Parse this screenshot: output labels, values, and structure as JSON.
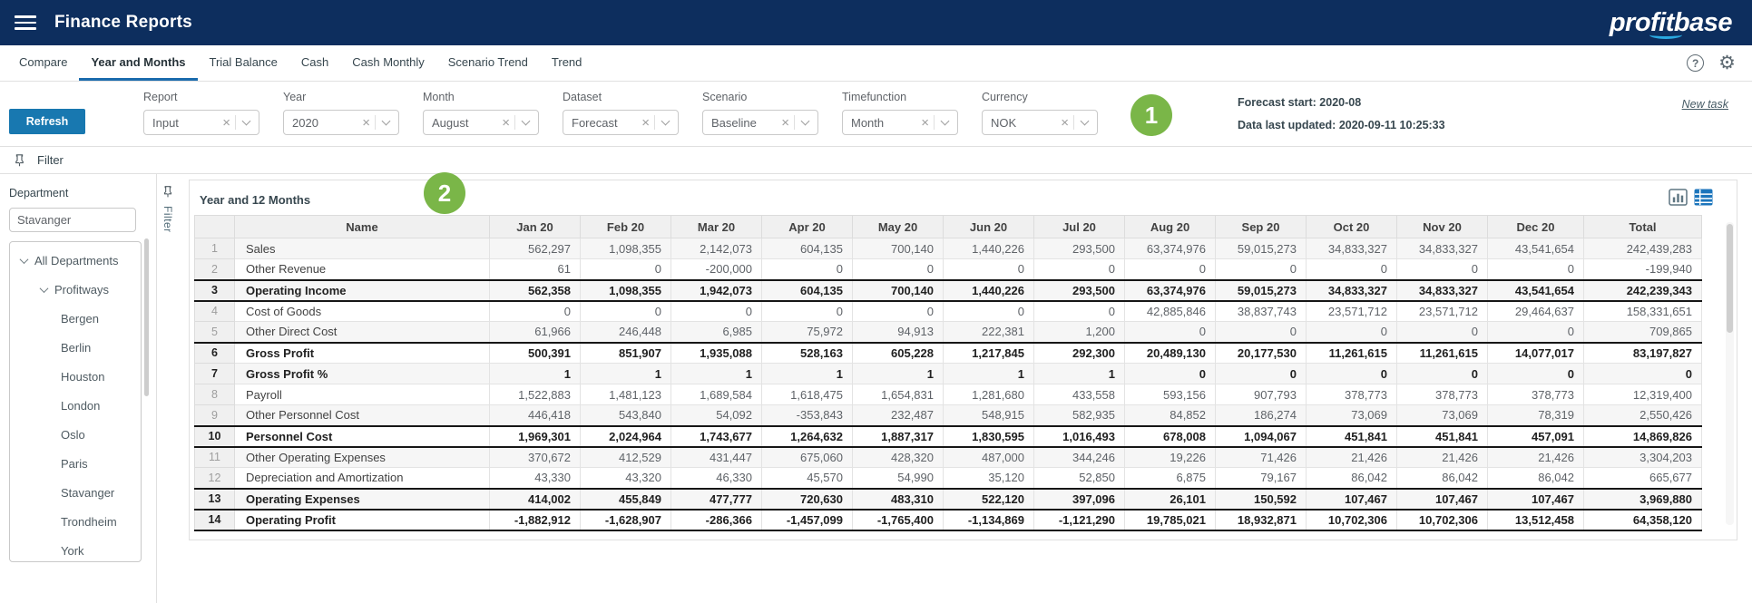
{
  "header": {
    "title": "Finance Reports",
    "logo": "profitbase"
  },
  "tabs": {
    "items": [
      {
        "label": "Compare",
        "active": false
      },
      {
        "label": "Year and Months",
        "active": true
      },
      {
        "label": "Trial Balance",
        "active": false
      },
      {
        "label": "Cash",
        "active": false
      },
      {
        "label": "Cash Monthly",
        "active": false
      },
      {
        "label": "Scenario Trend",
        "active": false
      },
      {
        "label": "Trend",
        "active": false
      }
    ]
  },
  "icons": {
    "help_glyph": "?",
    "gear_glyph": "⚙",
    "clear_glyph": "×"
  },
  "controls": {
    "refresh_label": "Refresh",
    "filters": [
      {
        "label": "Report",
        "value": "Input"
      },
      {
        "label": "Year",
        "value": "2020"
      },
      {
        "label": "Month",
        "value": "August"
      },
      {
        "label": "Dataset",
        "value": "Forecast"
      },
      {
        "label": "Scenario",
        "value": "Baseline"
      },
      {
        "label": "Timefunction",
        "value": "Month"
      },
      {
        "label": "Currency",
        "value": "NOK"
      }
    ],
    "forecast_start": "Forecast start: 2020-08",
    "last_updated": "Data last updated: 2020-09-11 10:25:33",
    "new_task": "New task"
  },
  "annotations": {
    "badge1": "1",
    "badge2": "2",
    "color": "#7ab648"
  },
  "filter_bar": {
    "label": "Filter"
  },
  "filter_panel": {
    "label": "Filter"
  },
  "sidebar": {
    "title": "Department",
    "search_value": "Stavanger",
    "tree": [
      {
        "label": "All Departments",
        "level": 0,
        "expandable": true
      },
      {
        "label": "Profitways",
        "level": 1,
        "expandable": true
      },
      {
        "label": "Bergen",
        "level": 2,
        "expandable": false
      },
      {
        "label": "Berlin",
        "level": 2,
        "expandable": false
      },
      {
        "label": "Houston",
        "level": 2,
        "expandable": false
      },
      {
        "label": "London",
        "level": 2,
        "expandable": false
      },
      {
        "label": "Oslo",
        "level": 2,
        "expandable": false
      },
      {
        "label": "Paris",
        "level": 2,
        "expandable": false
      },
      {
        "label": "Stavanger",
        "level": 2,
        "expandable": false
      },
      {
        "label": "Trondheim",
        "level": 2,
        "expandable": false
      },
      {
        "label": "York",
        "level": 2,
        "expandable": false
      }
    ]
  },
  "panel": {
    "title": "Year and 12 Months"
  },
  "table": {
    "columns": [
      "",
      "Name",
      "Jan 20",
      "Feb 20",
      "Mar 20",
      "Apr 20",
      "May 20",
      "Jun 20",
      "Jul 20",
      "Aug 20",
      "Sep 20",
      "Oct 20",
      "Nov 20",
      "Dec 20",
      "Total"
    ],
    "rows": [
      {
        "num": 1,
        "name": "Sales",
        "bold": false,
        "bt": false,
        "bb": false,
        "values": [
          "562,297",
          "1,098,355",
          "2,142,073",
          "604,135",
          "700,140",
          "1,440,226",
          "293,500",
          "63,374,976",
          "59,015,273",
          "34,833,327",
          "34,833,327",
          "43,541,654",
          "242,439,283"
        ]
      },
      {
        "num": 2,
        "name": "Other Revenue",
        "bold": false,
        "bt": false,
        "bb": false,
        "values": [
          "61",
          "0",
          "-200,000",
          "0",
          "0",
          "0",
          "0",
          "0",
          "0",
          "0",
          "0",
          "0",
          "-199,940"
        ]
      },
      {
        "num": 3,
        "name": "Operating Income",
        "bold": true,
        "bt": true,
        "bb": true,
        "values": [
          "562,358",
          "1,098,355",
          "1,942,073",
          "604,135",
          "700,140",
          "1,440,226",
          "293,500",
          "63,374,976",
          "59,015,273",
          "34,833,327",
          "34,833,327",
          "43,541,654",
          "242,239,343"
        ]
      },
      {
        "num": 4,
        "name": "Cost of Goods",
        "bold": false,
        "bt": false,
        "bb": false,
        "values": [
          "0",
          "0",
          "0",
          "0",
          "0",
          "0",
          "0",
          "42,885,846",
          "38,837,743",
          "23,571,712",
          "23,571,712",
          "29,464,637",
          "158,331,651"
        ]
      },
      {
        "num": 5,
        "name": "Other Direct Cost",
        "bold": false,
        "bt": false,
        "bb": false,
        "values": [
          "61,966",
          "246,448",
          "6,985",
          "75,972",
          "94,913",
          "222,381",
          "1,200",
          "0",
          "0",
          "0",
          "0",
          "0",
          "709,865"
        ]
      },
      {
        "num": 6,
        "name": "Gross Profit",
        "bold": true,
        "bt": true,
        "bb": false,
        "values": [
          "500,391",
          "851,907",
          "1,935,088",
          "528,163",
          "605,228",
          "1,217,845",
          "292,300",
          "20,489,130",
          "20,177,530",
          "11,261,615",
          "11,261,615",
          "14,077,017",
          "83,197,827"
        ]
      },
      {
        "num": 7,
        "name": "Gross Profit %",
        "bold": true,
        "bt": false,
        "bb": false,
        "values": [
          "1",
          "1",
          "1",
          "1",
          "1",
          "1",
          "1",
          "0",
          "0",
          "0",
          "0",
          "0",
          "0"
        ]
      },
      {
        "num": 8,
        "name": "Payroll",
        "bold": false,
        "bt": false,
        "bb": false,
        "values": [
          "1,522,883",
          "1,481,123",
          "1,689,584",
          "1,618,475",
          "1,654,831",
          "1,281,680",
          "433,558",
          "593,156",
          "907,793",
          "378,773",
          "378,773",
          "378,773",
          "12,319,400"
        ]
      },
      {
        "num": 9,
        "name": "Other Personnel Cost",
        "bold": false,
        "bt": false,
        "bb": false,
        "values": [
          "446,418",
          "543,840",
          "54,092",
          "-353,843",
          "232,487",
          "548,915",
          "582,935",
          "84,852",
          "186,274",
          "73,069",
          "73,069",
          "78,319",
          "2,550,426"
        ]
      },
      {
        "num": 10,
        "name": "Personnel Cost",
        "bold": true,
        "bt": true,
        "bb": true,
        "values": [
          "1,969,301",
          "2,024,964",
          "1,743,677",
          "1,264,632",
          "1,887,317",
          "1,830,595",
          "1,016,493",
          "678,008",
          "1,094,067",
          "451,841",
          "451,841",
          "457,091",
          "14,869,826"
        ]
      },
      {
        "num": 11,
        "name": "Other Operating Expenses",
        "bold": false,
        "bt": false,
        "bb": false,
        "values": [
          "370,672",
          "412,529",
          "431,447",
          "675,060",
          "428,320",
          "487,000",
          "344,246",
          "19,226",
          "71,426",
          "21,426",
          "21,426",
          "21,426",
          "3,304,203"
        ]
      },
      {
        "num": 12,
        "name": "Depreciation and Amortization",
        "bold": false,
        "bt": false,
        "bb": false,
        "values": [
          "43,330",
          "43,320",
          "46,330",
          "45,570",
          "54,990",
          "35,120",
          "52,850",
          "6,875",
          "79,167",
          "86,042",
          "86,042",
          "86,042",
          "665,677"
        ]
      },
      {
        "num": 13,
        "name": "Operating Expenses",
        "bold": true,
        "bt": true,
        "bb": true,
        "values": [
          "414,002",
          "455,849",
          "477,777",
          "720,630",
          "483,310",
          "522,120",
          "397,096",
          "26,101",
          "150,592",
          "107,467",
          "107,467",
          "107,467",
          "3,969,880"
        ]
      },
      {
        "num": 14,
        "name": "Operating Profit",
        "bold": true,
        "bt": true,
        "bb": true,
        "values": [
          "-1,882,912",
          "-1,628,907",
          "-286,366",
          "-1,457,099",
          "-1,765,400",
          "-1,134,869",
          "-1,121,290",
          "19,785,021",
          "18,932,871",
          "10,702,306",
          "10,702,306",
          "13,512,458",
          "64,358,120"
        ]
      }
    ]
  }
}
